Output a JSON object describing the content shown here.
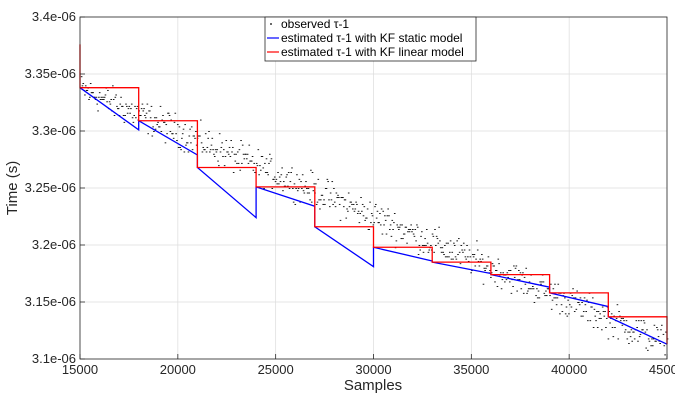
{
  "chart_data": {
    "type": "line",
    "xlabel": "Samples",
    "ylabel": "Time (s)",
    "xlim": [
      15000,
      45000
    ],
    "ylim": [
      3.1e-06,
      3.4e-06
    ],
    "grid": true,
    "legend_position": "top-center",
    "x_ticks": [
      15000,
      20000,
      25000,
      30000,
      35000,
      40000,
      45000
    ],
    "x_tick_labels": [
      "15000",
      "20000",
      "25000",
      "30000",
      "35000",
      "40000",
      "45000"
    ],
    "y_ticks": [
      3.1e-06,
      3.15e-06,
      3.2e-06,
      3.25e-06,
      3.3e-06,
      3.35e-06,
      3.4e-06
    ],
    "y_tick_labels": [
      "3.1e-06",
      "3.15e-06",
      "3.2e-06",
      "3.25e-06",
      "3.3e-06",
      "3.35e-06",
      "3.4e-06"
    ],
    "series": [
      {
        "name": "observed τ-1",
        "style": "scatter",
        "color": "#000000",
        "trend": {
          "x": [
            15000,
            45000
          ],
          "y": [
            3.337e-06,
            3.113e-06
          ]
        },
        "spread": 1.4e-08
      },
      {
        "name": "estimated τ-1 with KF static model",
        "style": "line",
        "color": "#0000ff",
        "x": [
          15000,
          18000,
          18000,
          21000,
          21000,
          24000,
          24000,
          27000,
          27000,
          30000,
          30000,
          33000,
          33000,
          36000,
          36000,
          39000,
          39000,
          42000,
          42000,
          45000
        ],
        "y": [
          3.338e-06,
          3.301e-06,
          3.309e-06,
          3.279e-06,
          3.268e-06,
          3.224e-06,
          3.251e-06,
          3.234e-06,
          3.216e-06,
          3.181e-06,
          3.198e-06,
          3.186e-06,
          3.185e-06,
          3.175e-06,
          3.174e-06,
          3.163e-06,
          3.158e-06,
          3.146e-06,
          3.137e-06,
          3.113e-06
        ]
      },
      {
        "name": "estimated τ-1 with KF linear model",
        "style": "line",
        "color": "#ff0000",
        "x": [
          15000,
          15000,
          18000,
          18000,
          21000,
          21000,
          24000,
          24000,
          27000,
          27000,
          30000,
          30000,
          33000,
          33000,
          36000,
          36000,
          39000,
          39000,
          42000,
          42000,
          45000,
          45000
        ],
        "y": [
          3.376e-06,
          3.338e-06,
          3.338e-06,
          3.309e-06,
          3.309e-06,
          3.268e-06,
          3.268e-06,
          3.251e-06,
          3.251e-06,
          3.216e-06,
          3.216e-06,
          3.198e-06,
          3.198e-06,
          3.185e-06,
          3.185e-06,
          3.174e-06,
          3.174e-06,
          3.158e-06,
          3.158e-06,
          3.137e-06,
          3.137e-06,
          3.113e-06
        ]
      }
    ]
  }
}
